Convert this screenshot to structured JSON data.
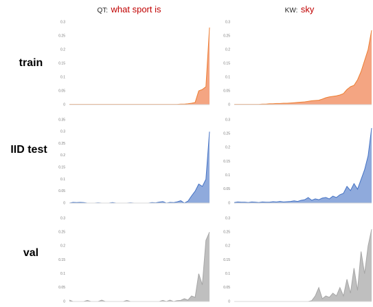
{
  "columns": [
    {
      "prefix": "QT:",
      "query": "what sport is"
    },
    {
      "prefix": "KW:",
      "query": "sky"
    }
  ],
  "rows": [
    "train",
    "IID test",
    "val"
  ],
  "chart_data": [
    {
      "type": "area",
      "color": "#f4a582",
      "line_color": "#ed7d31",
      "ylim": [
        0,
        0.3
      ],
      "yticks": [
        0,
        0.05,
        0.1,
        0.15,
        0.2,
        0.25,
        0.3
      ],
      "values": [
        0.001,
        0.001,
        0.001,
        0.001,
        0.001,
        0.001,
        0.001,
        0.001,
        0.001,
        0.001,
        0.001,
        0.001,
        0.001,
        0.001,
        0.001,
        0.001,
        0.001,
        0.001,
        0.001,
        0.001,
        0.001,
        0.001,
        0.001,
        0.001,
        0.001,
        0.001,
        0.001,
        0.001,
        0.001,
        0.001,
        0.001,
        0.002,
        0.002,
        0.003,
        0.005,
        0.008,
        0.05,
        0.055,
        0.065,
        0.28
      ]
    },
    {
      "type": "area",
      "color": "#f4a582",
      "line_color": "#ed7d31",
      "ylim": [
        0,
        0.3
      ],
      "yticks": [
        0,
        0.05,
        0.1,
        0.15,
        0.2,
        0.25,
        0.3
      ],
      "values": [
        0.001,
        0.001,
        0.001,
        0.001,
        0.001,
        0.001,
        0.001,
        0.001,
        0.002,
        0.002,
        0.003,
        0.003,
        0.004,
        0.004,
        0.005,
        0.005,
        0.006,
        0.007,
        0.008,
        0.009,
        0.01,
        0.012,
        0.014,
        0.015,
        0.016,
        0.02,
        0.025,
        0.028,
        0.03,
        0.032,
        0.035,
        0.04,
        0.055,
        0.065,
        0.07,
        0.09,
        0.12,
        0.16,
        0.2,
        0.27
      ]
    },
    {
      "type": "area",
      "color": "#8faadc",
      "line_color": "#4472c4",
      "ylim": [
        0,
        0.35
      ],
      "yticks": [
        0,
        0.05,
        0.1,
        0.15,
        0.2,
        0.25,
        0.3,
        0.35
      ],
      "values": [
        0,
        0.003,
        0.002,
        0.003,
        0.002,
        0,
        0,
        0,
        0.001,
        0,
        0,
        0,
        0.002,
        0,
        0,
        0,
        0,
        0.001,
        0,
        0,
        0,
        0,
        0,
        0.002,
        0.001,
        0.004,
        0.006,
        0,
        0.003,
        0.002,
        0.005,
        0.01,
        0,
        0.008,
        0.03,
        0.05,
        0.08,
        0.07,
        0.1,
        0.3
      ]
    },
    {
      "type": "area",
      "color": "#8faadc",
      "line_color": "#4472c4",
      "ylim": [
        0,
        0.3
      ],
      "yticks": [
        0,
        0.05,
        0.1,
        0.15,
        0.2,
        0.25,
        0.3
      ],
      "values": [
        0.002,
        0.004,
        0.003,
        0.003,
        0.002,
        0.004,
        0.003,
        0.002,
        0.004,
        0.003,
        0.003,
        0.005,
        0.004,
        0.006,
        0.004,
        0.005,
        0.006,
        0.008,
        0.006,
        0.01,
        0.012,
        0.02,
        0.01,
        0.015,
        0.012,
        0.018,
        0.02,
        0.015,
        0.025,
        0.02,
        0.03,
        0.035,
        0.06,
        0.045,
        0.07,
        0.05,
        0.085,
        0.12,
        0.17,
        0.27
      ]
    },
    {
      "type": "area",
      "color": "#bfbfbf",
      "line_color": "#a6a6a6",
      "ylim": [
        0,
        0.3
      ],
      "yticks": [
        0,
        0.05,
        0.1,
        0.15,
        0.2,
        0.25,
        0.3
      ],
      "values": [
        0.005,
        0,
        0,
        0,
        0,
        0.004,
        0,
        0,
        0,
        0.005,
        0,
        0,
        0,
        0,
        0,
        0,
        0.004,
        0,
        0,
        0,
        0,
        0,
        0,
        0,
        0,
        0,
        0.004,
        0,
        0.005,
        0,
        0.003,
        0.004,
        0.01,
        0.005,
        0.02,
        0.015,
        0.1,
        0.06,
        0.22,
        0.25
      ]
    },
    {
      "type": "area",
      "color": "#bfbfbf",
      "line_color": "#a6a6a6",
      "ylim": [
        0,
        0.3
      ],
      "yticks": [
        0,
        0.05,
        0.1,
        0.15,
        0.2,
        0.25,
        0.3
      ],
      "values": [
        0,
        0,
        0,
        0,
        0,
        0,
        0,
        0,
        0,
        0,
        0,
        0,
        0,
        0,
        0,
        0,
        0,
        0,
        0,
        0,
        0,
        0,
        0.003,
        0.02,
        0.05,
        0.01,
        0.02,
        0.015,
        0.03,
        0.02,
        0.05,
        0.02,
        0.08,
        0.03,
        0.12,
        0.04,
        0.18,
        0.1,
        0.2,
        0.26
      ]
    }
  ]
}
